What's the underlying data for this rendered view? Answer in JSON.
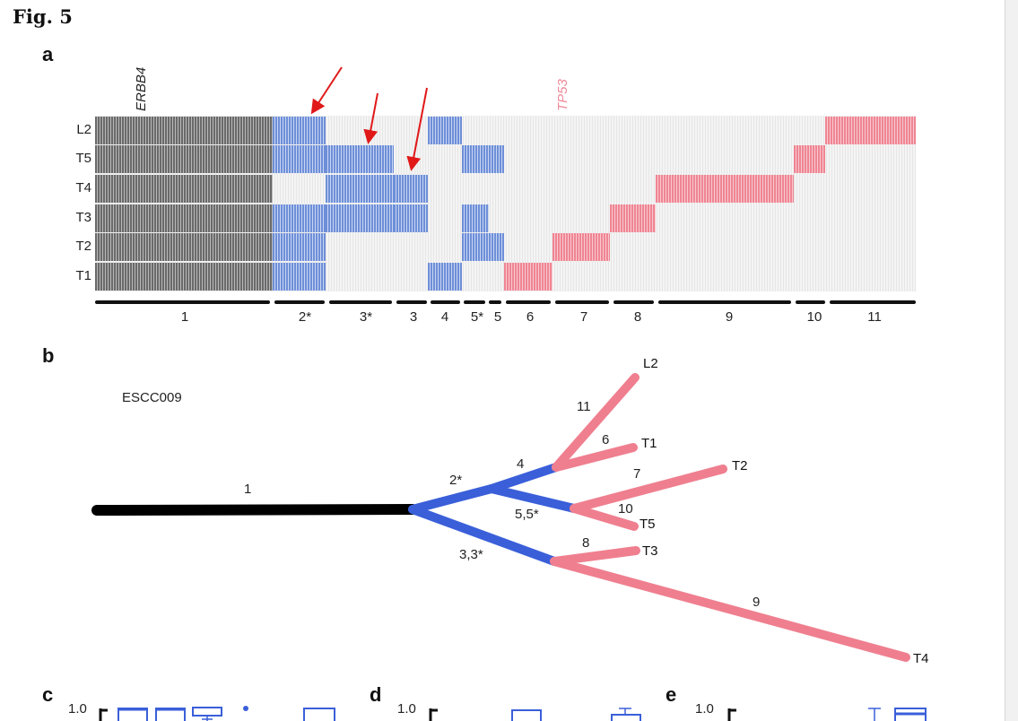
{
  "figure": {
    "title": "Fig. 5",
    "panels": {
      "a": "a",
      "b": "b",
      "c": "c",
      "d": "d",
      "e": "e"
    }
  },
  "panel_a": {
    "genes": [
      {
        "name": "ERBB4",
        "color": "#222222"
      },
      {
        "name": "TP53",
        "color": "#f08a9a"
      }
    ],
    "rows": [
      "L2",
      "T5",
      "T4",
      "T3",
      "T2",
      "T1"
    ],
    "cluster_labels": [
      "1",
      "2*",
      "3*",
      "3",
      "4",
      "5*",
      "5",
      "6",
      "7",
      "8",
      "9",
      "10",
      "11"
    ],
    "colors": {
      "trunk": "#6a6a6a",
      "branch": "#6e8fd8",
      "private": "#ef8593",
      "empty": "#f2f2f2",
      "arrow": "#e01818"
    }
  },
  "panel_b": {
    "sample_id": "ESCC009",
    "edge_labels": [
      "1",
      "2*",
      "4",
      "5,5*",
      "3,3*",
      "11",
      "6",
      "7",
      "10",
      "8",
      "9"
    ],
    "leaves": [
      "L2",
      "T1",
      "T2",
      "T5",
      "T3",
      "T4"
    ],
    "colors": {
      "trunk": "#000000",
      "branch": "#3a5fd9",
      "private": "#ef7f8f"
    }
  },
  "bottom_panels": {
    "axis_tick": "1.0"
  }
}
